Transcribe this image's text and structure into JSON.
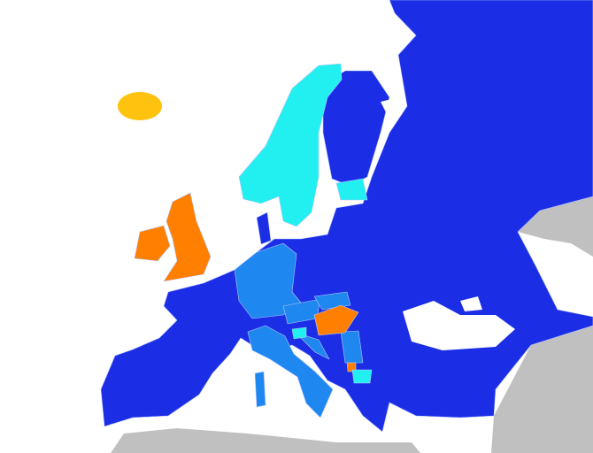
{
  "map": {
    "colors": {
      "sea": "#ffffff",
      "outside": "#c0c0c0",
      "dark_blue": "#1b2ee6",
      "light_blue": "#1e88f0",
      "cyan": "#22f0f0",
      "orange": "#ff8000",
      "yellow": "#ffc20e"
    }
  }
}
